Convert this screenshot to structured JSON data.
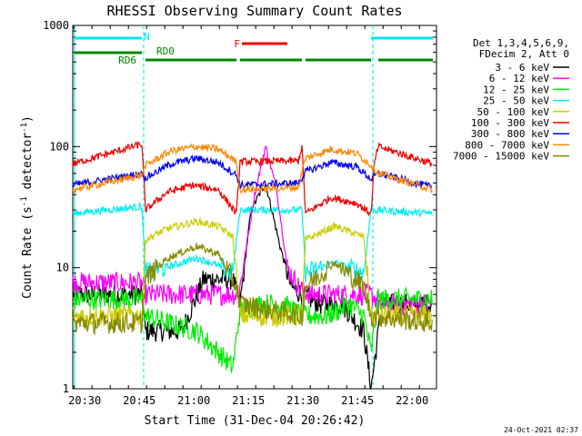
{
  "chart_data": {
    "type": "line",
    "title": "RHESSI Observing Summary Count Rates",
    "xlabel": "Start Time (31-Dec-04 20:26:42)",
    "ylabel_main": "Count Rate (s",
    "ylabel_sup1": "-1",
    "ylabel_mid": " detector",
    "ylabel_sup2": "-1",
    "ylabel_end": ")",
    "y_scale": "log",
    "ylim": [
      1,
      1000
    ],
    "xlim_minutes": [
      0,
      100
    ],
    "x_ticks": [
      {
        "minute": 3.3,
        "label": "20:30"
      },
      {
        "minute": 18.3,
        "label": "20:45"
      },
      {
        "minute": 33.3,
        "label": "21:00"
      },
      {
        "minute": 48.3,
        "label": "21:15"
      },
      {
        "minute": 63.3,
        "label": "21:30"
      },
      {
        "minute": 78.3,
        "label": "21:45"
      },
      {
        "minute": 93.3,
        "label": "22:00"
      }
    ],
    "y_ticks": [
      {
        "value": 1,
        "label": "1"
      },
      {
        "value": 10,
        "label": "10"
      },
      {
        "value": 100,
        "label": "100"
      },
      {
        "value": 1000,
        "label": "1000"
      }
    ],
    "legend_header": [
      "Det 1,3,4,5,6,9,",
      "FDecim 2, Att 0"
    ],
    "legend_placement": "right",
    "timestamp": "24-Oct-2021 02:37",
    "flags": [
      {
        "label": "N",
        "color": "#00e5ee",
        "segments": [
          [
            0.5,
            19
          ],
          [
            82,
            99
          ]
        ]
      },
      {
        "label": "RD0",
        "color": "#008800",
        "segments": [
          [
            0.5,
            19
          ]
        ]
      },
      {
        "label": "RD6",
        "color": "#008800",
        "segments": [
          [
            20,
            45
          ],
          [
            46,
            63
          ],
          [
            64,
            82
          ],
          [
            84,
            99
          ]
        ]
      },
      {
        "label": "F",
        "color": "#ee0000",
        "segments": [
          [
            46.5,
            59
          ]
        ]
      }
    ],
    "night_boundaries_minutes": [
      19.5,
      82.5
    ],
    "series": [
      {
        "name": "3 - 6 keV",
        "color": "#000000",
        "points": [
          [
            0,
            6
          ],
          [
            19,
            6
          ],
          [
            20,
            3
          ],
          [
            30,
            3
          ],
          [
            36,
            8
          ],
          [
            44,
            8
          ],
          [
            46,
            5
          ],
          [
            49,
            30
          ],
          [
            53,
            50
          ],
          [
            57,
            15
          ],
          [
            60,
            7
          ],
          [
            63,
            6
          ],
          [
            68,
            5
          ],
          [
            74,
            5
          ],
          [
            80,
            3
          ],
          [
            82,
            1
          ],
          [
            85,
            5
          ],
          [
            99,
            5
          ]
        ]
      },
      {
        "name": "6 - 12 keV",
        "color": "#ff00ff",
        "points": [
          [
            0,
            7.5
          ],
          [
            19,
            7.5
          ],
          [
            20,
            6
          ],
          [
            45,
            6
          ],
          [
            46,
            7
          ],
          [
            50,
            40
          ],
          [
            53,
            100
          ],
          [
            56,
            45
          ],
          [
            59,
            10
          ],
          [
            62,
            7
          ],
          [
            65,
            6
          ],
          [
            82,
            6
          ],
          [
            85,
            5
          ],
          [
            99,
            5
          ]
        ]
      },
      {
        "name": "12 - 25 keV",
        "color": "#00ee00",
        "points": [
          [
            0,
            5.5
          ],
          [
            19,
            5.5
          ],
          [
            20,
            4
          ],
          [
            26,
            3.5
          ],
          [
            34,
            3
          ],
          [
            40,
            2
          ],
          [
            44,
            1.5
          ],
          [
            46,
            4.5
          ],
          [
            52,
            5
          ],
          [
            58,
            5
          ],
          [
            63,
            4
          ],
          [
            70,
            4
          ],
          [
            76,
            5
          ],
          [
            80,
            4
          ],
          [
            82,
            2
          ],
          [
            84,
            5.5
          ],
          [
            99,
            5.5
          ]
        ]
      },
      {
        "name": "25 - 50 keV",
        "color": "#00eeee",
        "points": [
          [
            0,
            28
          ],
          [
            19,
            32
          ],
          [
            20,
            9
          ],
          [
            30,
            11
          ],
          [
            34,
            12
          ],
          [
            38,
            11
          ],
          [
            44,
            9
          ],
          [
            46,
            30
          ],
          [
            62,
            30
          ],
          [
            63,
            30
          ],
          [
            64,
            9
          ],
          [
            72,
            11
          ],
          [
            80,
            9
          ],
          [
            82,
            30
          ],
          [
            99,
            28
          ]
        ]
      },
      {
        "name": "50 - 100 keV",
        "color": "#cccc00",
        "points": [
          [
            0,
            4
          ],
          [
            19,
            4
          ],
          [
            20,
            17
          ],
          [
            26,
            21
          ],
          [
            34,
            24
          ],
          [
            40,
            22
          ],
          [
            44,
            18
          ],
          [
            46,
            4
          ],
          [
            63,
            4
          ],
          [
            64,
            17
          ],
          [
            72,
            22
          ],
          [
            80,
            18
          ],
          [
            82,
            4
          ],
          [
            99,
            4
          ]
        ]
      },
      {
        "name": "100 - 300 keV",
        "color": "#ee0000",
        "points": [
          [
            0,
            72
          ],
          [
            19,
            105
          ],
          [
            20,
            30
          ],
          [
            26,
            42
          ],
          [
            33,
            48
          ],
          [
            40,
            44
          ],
          [
            45,
            28
          ],
          [
            46,
            75
          ],
          [
            62,
            76
          ],
          [
            63,
            100
          ],
          [
            64,
            28
          ],
          [
            71,
            38
          ],
          [
            78,
            34
          ],
          [
            82,
            28
          ],
          [
            83,
            75
          ],
          [
            84,
            100
          ],
          [
            99,
            72
          ]
        ]
      },
      {
        "name": "300 - 800 keV",
        "color": "#0000ee",
        "points": [
          [
            0,
            48
          ],
          [
            19,
            60
          ],
          [
            20,
            55
          ],
          [
            27,
            72
          ],
          [
            34,
            80
          ],
          [
            40,
            74
          ],
          [
            45,
            58
          ],
          [
            46,
            48
          ],
          [
            62,
            50
          ],
          [
            63,
            55
          ],
          [
            64,
            62
          ],
          [
            71,
            74
          ],
          [
            78,
            68
          ],
          [
            82,
            54
          ],
          [
            84,
            60
          ],
          [
            99,
            46
          ]
        ]
      },
      {
        "name": "800 - 7000 keV",
        "color": "#ff8800",
        "points": [
          [
            0,
            44
          ],
          [
            19,
            58
          ],
          [
            20,
            70
          ],
          [
            27,
            92
          ],
          [
            34,
            100
          ],
          [
            40,
            95
          ],
          [
            45,
            75
          ],
          [
            46,
            44
          ],
          [
            62,
            46
          ],
          [
            63,
            62
          ],
          [
            64,
            80
          ],
          [
            71,
            95
          ],
          [
            78,
            88
          ],
          [
            82,
            70
          ],
          [
            84,
            60
          ],
          [
            99,
            44
          ]
        ]
      },
      {
        "name": "7000 - 15000 keV",
        "color": "#888800",
        "points": [
          [
            0,
            3.5
          ],
          [
            19,
            3.5
          ],
          [
            20,
            8
          ],
          [
            26,
            12
          ],
          [
            34,
            15
          ],
          [
            40,
            13
          ],
          [
            45,
            7
          ],
          [
            46,
            5
          ],
          [
            63,
            4
          ],
          [
            64,
            7
          ],
          [
            72,
            11
          ],
          [
            80,
            7
          ],
          [
            82,
            4
          ],
          [
            99,
            3.5
          ]
        ]
      }
    ]
  }
}
